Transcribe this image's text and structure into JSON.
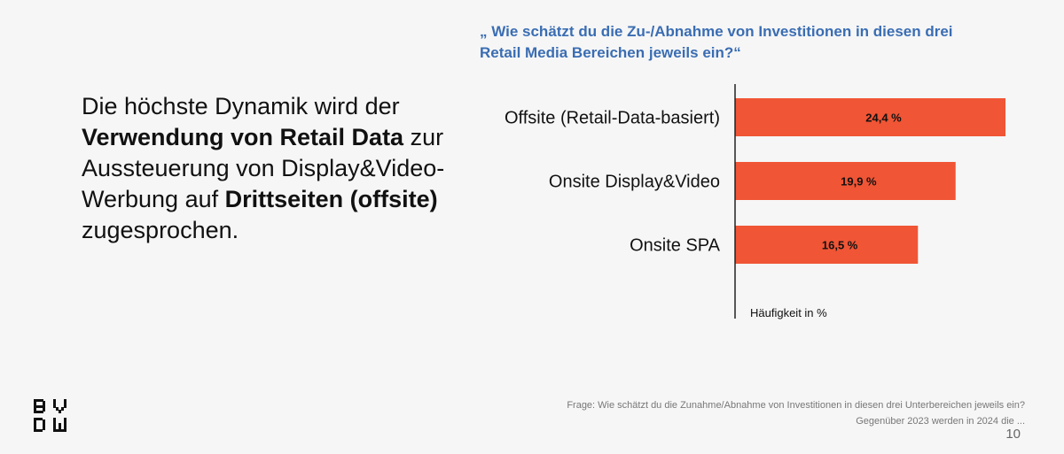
{
  "headline": {
    "parts": [
      {
        "text": "Die höchste Dynamik wird der ",
        "bold": false
      },
      {
        "text": "Verwendung von Retail Data",
        "bold": true
      },
      {
        "text": " zur Aussteuerung von Display&Video-Werbung auf ",
        "bold": false
      },
      {
        "text": "Drittseiten (offsite)",
        "bold": true
      },
      {
        "text": " zugesprochen.",
        "bold": false
      }
    ]
  },
  "question": "„ Wie schätzt du die Zu-/Abnahme von Investitionen in diesen drei Retail Media Bereichen jeweils ein?“",
  "chart_data": {
    "type": "bar",
    "orientation": "horizontal",
    "categories": [
      "Offsite (Retail-Data-basiert)",
      "Onsite Display&Video",
      "Onsite SPA"
    ],
    "values": [
      24.4,
      19.9,
      16.5
    ],
    "data_labels": [
      "24,4 %",
      "19,9 %",
      "16,5 %"
    ],
    "xlabel": "Häufigkeit in %",
    "xlim": [
      0,
      24.4
    ],
    "grid": false,
    "bar_color": "#f05535"
  },
  "footer": {
    "logo": "BVDW",
    "source_line1": "Frage: Wie schätzt du die Zunahme/Abnahme von Investitionen in diesen drei Unterbereichen jeweils ein?",
    "source_line2": "Gegenüber 2023 werden in 2024 die ...",
    "page_number": "10"
  }
}
